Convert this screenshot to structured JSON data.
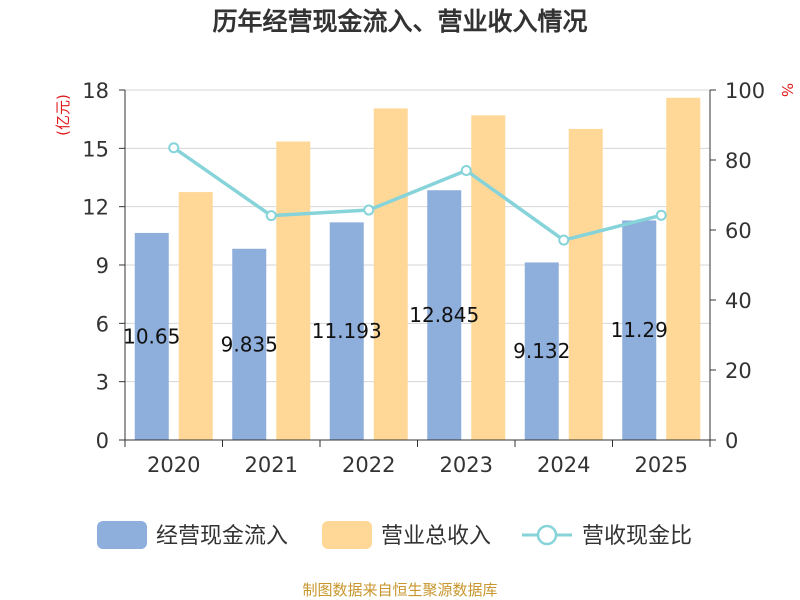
{
  "chart_data": {
    "type": "bar",
    "title": "历年经营现金流入、营业收入情况",
    "categories": [
      "2020",
      "2021",
      "2022",
      "2023",
      "2024",
      "2025"
    ],
    "series": [
      {
        "name": "经营现金流入",
        "kind": "bar",
        "axis": "left",
        "color": "#8eaedc",
        "values": [
          10.65,
          9.835,
          11.193,
          12.845,
          9.132,
          11.29
        ],
        "labels": [
          "10.65",
          "9.835",
          "11.193",
          "12.845",
          "9.132",
          "11.29"
        ]
      },
      {
        "name": "营业总收入",
        "kind": "bar",
        "axis": "left",
        "color": "#ffd898",
        "values": [
          12.75,
          15.35,
          17.05,
          16.7,
          16.0,
          17.6
        ]
      },
      {
        "name": "营收现金比",
        "kind": "line",
        "axis": "right",
        "color": "#86d3da",
        "values": [
          83.5,
          64.1,
          65.7,
          77.0,
          57.1,
          64.2
        ]
      }
    ],
    "y_left": {
      "label": "(亿元)",
      "min": 0,
      "max": 18,
      "ticks": [
        0,
        3,
        6,
        9,
        12,
        15,
        18
      ]
    },
    "y_right": {
      "label": "%",
      "min": 0,
      "max": 100,
      "ticks": [
        0,
        20,
        40,
        60,
        80,
        100
      ]
    },
    "grid": true,
    "legend_position": "bottom"
  },
  "footer": {
    "source": "制图数据来自恒生聚源数据库"
  }
}
